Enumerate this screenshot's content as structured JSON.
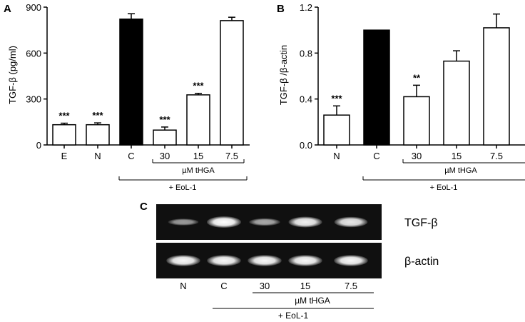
{
  "chart_data": [
    {
      "panel": "A",
      "type": "bar",
      "ylabel": "TGF-β (pg/ml)",
      "categories": [
        "E",
        "N",
        "C",
        "30",
        "15",
        "7.5"
      ],
      "values": [
        132,
        132,
        822,
        97,
        327,
        812
      ],
      "errors": [
        10,
        12,
        35,
        20,
        10,
        22
      ],
      "fills": [
        "white",
        "white",
        "black",
        "white",
        "white",
        "white"
      ],
      "significance": [
        "***",
        "***",
        "",
        "***",
        "***",
        ""
      ],
      "ylim": [
        0,
        900
      ],
      "yticks": [
        "0",
        "300",
        "600",
        "900"
      ],
      "group_labels": [
        "µM tHGA",
        "+ EoL-1"
      ],
      "grid": false
    },
    {
      "panel": "B",
      "type": "bar",
      "ylabel": "TGF-β /β-actin",
      "categories": [
        "N",
        "C",
        "30",
        "15",
        "7.5"
      ],
      "values": [
        0.26,
        1.0,
        0.42,
        0.73,
        1.02
      ],
      "errors": [
        0.08,
        0,
        0.1,
        0.09,
        0.12
      ],
      "fills": [
        "white",
        "black",
        "white",
        "white",
        "white"
      ],
      "significance": [
        "***",
        "",
        "**",
        "",
        ""
      ],
      "ylim": [
        0,
        1.2
      ],
      "yticks": [
        "0.0",
        "0.4",
        "0.8",
        "1.2"
      ],
      "group_labels": [
        "µM tHGA",
        "+ EoL-1"
      ],
      "grid": false
    }
  ],
  "gel": {
    "panel": "C",
    "rows": [
      {
        "label": "TGF-β",
        "intensities": [
          0.35,
          1.0,
          0.45,
          0.9,
          0.85
        ]
      },
      {
        "label": "β-actin",
        "intensities": [
          0.95,
          0.95,
          0.95,
          0.95,
          0.95
        ]
      }
    ],
    "lanes": [
      "N",
      "C",
      "30",
      "15",
      "7.5"
    ],
    "group_labels": [
      "µM tHGA",
      "+ EoL-1"
    ]
  },
  "colors": {
    "bar_black": "#000000",
    "bar_white": "#ffffff",
    "gel_bg": "#101010",
    "band": "#e8e8e8"
  }
}
